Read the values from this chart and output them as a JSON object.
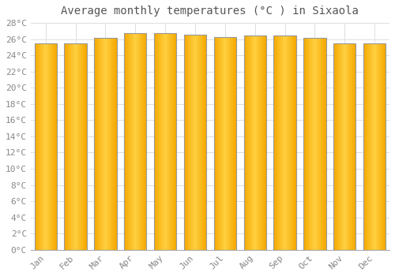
{
  "title": "Average monthly temperatures (°C ) in Sixaola",
  "months": [
    "Jan",
    "Feb",
    "Mar",
    "Apr",
    "May",
    "Jun",
    "Jul",
    "Aug",
    "Sep",
    "Oct",
    "Nov",
    "Dec"
  ],
  "temperatures": [
    25.5,
    25.5,
    26.2,
    26.7,
    26.7,
    26.5,
    26.3,
    26.4,
    26.4,
    26.2,
    25.5,
    25.5
  ],
  "bar_color_center": "#FFD040",
  "bar_color_edge": "#F5A800",
  "bar_border_color": "#999999",
  "ylim": [
    0,
    28
  ],
  "ytick_step": 2,
  "background_color": "#ffffff",
  "grid_color": "#dddddd",
  "title_fontsize": 10,
  "tick_fontsize": 8,
  "tick_color": "#888888",
  "font_family": "monospace"
}
